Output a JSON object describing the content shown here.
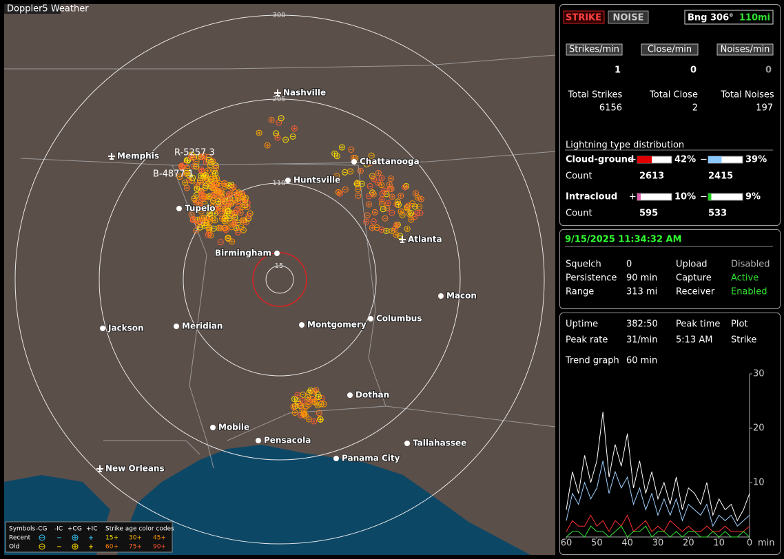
{
  "map": {
    "title": "Doppler5 Weather",
    "ring_labels": [
      "300",
      "205",
      "110",
      "15"
    ],
    "cities": [
      "Nashville",
      "Chattanooga",
      "Memphis",
      "Huntsville",
      "Tupelo",
      "Birmingham",
      "Atlanta",
      "Macon",
      "Jackson",
      "Meridian",
      "Montgomery",
      "Columbus",
      "Dothan",
      "Mobile",
      "Pensacola",
      "Tallahassee",
      "Panama City",
      "New Orleans"
    ],
    "strike_labels": [
      "R-5257 3",
      "B-4877 1"
    ],
    "legend": {
      "symbols": "Symbols",
      "types": [
        "-CG",
        "-IC",
        "+CG",
        "+IC"
      ],
      "age_title": "Strike age color codes",
      "recent": "Recent",
      "old": "Old",
      "ages": [
        "15+",
        "30+",
        "45+",
        "60+",
        "75+",
        "90+"
      ]
    }
  },
  "status": {
    "strike": "STRIKE",
    "noise": "NOISE",
    "bearing": "Bng 306°",
    "distance": "110mi"
  },
  "rates": [
    {
      "label": "Strikes/min",
      "value": 1
    },
    {
      "label": "Close/min",
      "value": 0
    },
    {
      "label": "Noises/min",
      "value": 0
    }
  ],
  "totals": [
    {
      "label": "Total Strikes",
      "value": 6156
    },
    {
      "label": "Total Close",
      "value": 2
    },
    {
      "label": "Total Noises",
      "value": 197
    }
  ],
  "distribution": {
    "title": "Lightning type distribution",
    "count_label": "Count",
    "plus": "+",
    "minus": "−",
    "rows": [
      {
        "name": "Cloud-ground",
        "pos": {
          "value": 42,
          "label": "42%"
        },
        "neg": {
          "value": 39,
          "label": "39%"
        },
        "pos_count": 2613,
        "neg_count": 2415
      },
      {
        "name": "Intracloud",
        "pos": {
          "value": 10,
          "label": "10%"
        },
        "neg": {
          "value": 9,
          "label": "9%"
        },
        "pos_count": 595,
        "neg_count": 533
      }
    ]
  },
  "settings": {
    "datetime": "9/15/2025 11:34:32 AM",
    "rows": [
      [
        "Squelch",
        "0",
        "Upload",
        "Disabled"
      ],
      [
        "Persistence",
        "90 min",
        "Capture",
        "Active"
      ],
      [
        "Range",
        "313 mi",
        "Receiver",
        "Enabled"
      ]
    ]
  },
  "stats": {
    "rows": [
      [
        "Uptime",
        "382:50",
        "Peak time",
        "Plot"
      ],
      [
        "Peak rate",
        "31/min",
        "5:13 AM",
        "Strike"
      ]
    ],
    "trend_label": "Trend graph",
    "trend_value": "60 min"
  },
  "trend": {
    "x_unit": "min",
    "xlim": [
      60,
      0
    ],
    "ylim": [
      0,
      30
    ],
    "xticks": [
      60,
      50,
      40,
      30,
      20,
      10,
      0
    ],
    "yticks": [
      10,
      20,
      30
    ],
    "x": [
      60,
      58,
      56,
      54,
      52,
      50,
      48,
      46,
      44,
      42,
      40,
      38,
      36,
      34,
      32,
      30,
      28,
      26,
      24,
      22,
      20,
      18,
      16,
      14,
      12,
      10,
      8,
      6,
      4,
      2,
      0
    ],
    "series": [
      {
        "color": "#ffffff",
        "values": [
          5,
          12,
          8,
          15,
          10,
          14,
          23,
          11,
          17,
          13,
          19,
          9,
          14,
          8,
          12,
          7,
          10,
          6,
          11,
          5,
          9,
          8,
          6,
          10,
          4,
          7,
          5,
          6,
          3,
          5,
          8
        ]
      },
      {
        "color": "#9fd0ff",
        "values": [
          3,
          8,
          6,
          10,
          7,
          9,
          14,
          8,
          12,
          9,
          11,
          6,
          9,
          5,
          8,
          4,
          7,
          4,
          7,
          3,
          6,
          5,
          4,
          6,
          2,
          4,
          3,
          4,
          2,
          3,
          4
        ]
      },
      {
        "color": "#ff3030",
        "values": [
          1,
          3,
          2,
          2,
          4,
          2,
          3,
          1,
          3,
          2,
          4,
          1,
          2,
          3,
          1,
          2,
          1,
          3,
          2,
          1,
          2,
          1,
          1,
          2,
          1,
          1,
          2,
          1,
          1,
          1,
          2
        ]
      },
      {
        "color": "#30e030",
        "values": [
          0,
          1,
          1,
          0,
          2,
          1,
          1,
          0,
          1,
          2,
          0,
          1,
          1,
          2,
          0,
          1,
          1,
          0,
          1,
          0,
          1,
          1,
          0,
          0,
          1,
          0,
          1,
          0,
          0,
          1,
          0
        ]
      }
    ]
  }
}
